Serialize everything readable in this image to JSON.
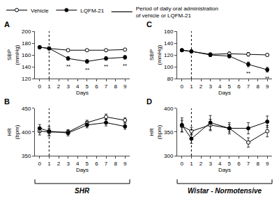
{
  "chart_data": [
    {
      "type": "line",
      "title": "A",
      "xlabel": "Days",
      "ylabel": "SBP\n(mmHg)",
      "x": [
        0,
        1,
        3,
        5,
        7,
        9
      ],
      "xlim": [
        -0.5,
        9.5
      ],
      "xticks": [
        0,
        1,
        2,
        3,
        4,
        5,
        6,
        7,
        8,
        9
      ],
      "ylim": [
        120,
        200
      ],
      "yticks": [
        120,
        140,
        160,
        180,
        200
      ],
      "grid": false,
      "series": [
        {
          "name": "Vehicle",
          "color": "#000000",
          "marker": "open_circle",
          "values": [
            173,
            171,
            168,
            168,
            168,
            169
          ],
          "errors": [
            2,
            2,
            2,
            2,
            2,
            2
          ]
        },
        {
          "name": "LQFM-21",
          "color": "#000000",
          "marker": "circle",
          "values": [
            173,
            171,
            154,
            149,
            154,
            156
          ],
          "errors": [
            2,
            2,
            3,
            3,
            3,
            3
          ],
          "sig_days": [
            3,
            5,
            7,
            9
          ],
          "sig_label": "**"
        }
      ]
    },
    {
      "type": "line",
      "title": "B",
      "xlabel": "Days",
      "ylabel": "HR\n(bpm)",
      "x": [
        0,
        1,
        3,
        5,
        7,
        9
      ],
      "xlim": [
        -0.5,
        9.5
      ],
      "xticks": [
        0,
        1,
        2,
        3,
        4,
        5,
        6,
        7,
        8,
        9
      ],
      "ylim": [
        350,
        450
      ],
      "yticks": [
        350,
        400,
        450
      ],
      "grid": false,
      "series": [
        {
          "name": "Vehicle",
          "color": "#000000",
          "marker": "open_circle",
          "values": [
            402,
            400,
            400,
            420,
            432,
            425
          ],
          "errors": [
            8,
            8,
            5,
            5,
            6,
            5
          ]
        },
        {
          "name": "LQFM-21",
          "color": "#000000",
          "marker": "circle",
          "values": [
            408,
            402,
            398,
            415,
            420,
            412
          ],
          "errors": [
            8,
            10,
            6,
            6,
            7,
            6
          ]
        }
      ]
    },
    {
      "type": "line",
      "title": "C",
      "xlabel": "Days",
      "ylabel": "SBP\n(mmHg)",
      "x": [
        0,
        1,
        3,
        5,
        7,
        9
      ],
      "xlim": [
        -0.5,
        9.5
      ],
      "xticks": [
        0,
        1,
        2,
        3,
        4,
        5,
        6,
        7,
        8,
        9
      ],
      "ylim": [
        80,
        160
      ],
      "yticks": [
        80,
        100,
        120,
        140,
        160
      ],
      "grid": false,
      "series": [
        {
          "name": "Vehicle",
          "color": "#000000",
          "marker": "open_circle",
          "values": [
            128,
            126,
            121,
            122,
            121,
            120
          ],
          "errors": [
            2,
            2,
            2,
            3,
            3,
            2
          ]
        },
        {
          "name": "LQFM-21",
          "color": "#000000",
          "marker": "circle",
          "values": [
            128,
            126,
            120,
            118,
            104,
            95
          ],
          "errors": [
            2,
            2,
            3,
            3,
            4,
            4
          ],
          "sig_days": [
            7,
            9
          ],
          "sig_label": "**"
        }
      ]
    },
    {
      "type": "line",
      "title": "D",
      "xlabel": "Days",
      "ylabel": "HR\n(bpm)",
      "x": [
        0,
        1,
        3,
        5,
        7,
        9
      ],
      "xlim": [
        -0.5,
        9.5
      ],
      "xticks": [
        0,
        1,
        2,
        3,
        4,
        5,
        6,
        7,
        8,
        9
      ],
      "ylim": [
        300,
        400
      ],
      "yticks": [
        300,
        350,
        400
      ],
      "grid": false,
      "series": [
        {
          "name": "Vehicle",
          "color": "#000000",
          "marker": "open_circle",
          "values": [
            363,
            352,
            365,
            358,
            328,
            352
          ],
          "errors": [
            12,
            8,
            12,
            12,
            10,
            12
          ]
        },
        {
          "name": "LQFM-21",
          "color": "#000000",
          "marker": "circle",
          "values": [
            365,
            336,
            370,
            358,
            358,
            372
          ],
          "errors": [
            15,
            10,
            15,
            8,
            12,
            12
          ]
        }
      ]
    }
  ],
  "legend": "top",
  "period": {
    "label": "Period of daily oral administration\nof vehicle or LQFM-21",
    "start": 1,
    "color": "#000000"
  },
  "groups": [
    "SHR",
    "Wistar - Normotensive"
  ]
}
